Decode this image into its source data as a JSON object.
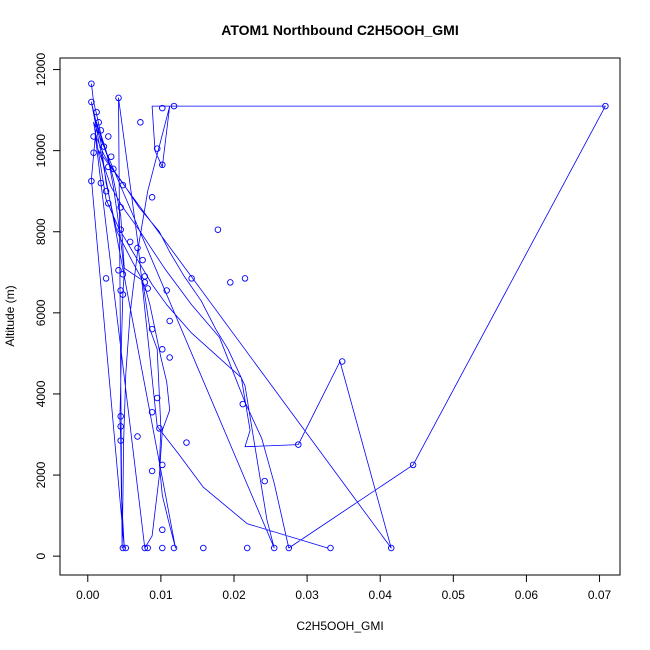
{
  "chart_data": {
    "type": "line",
    "title": "ATOM1 Northbound C2H5OOH_GMI",
    "xlabel": "C2H5OOH_GMI",
    "ylabel": "Altitude (m)",
    "xlim": [
      -0.0038,
      0.0728
    ],
    "ylim": [
      -465,
      12285
    ],
    "xticks": [
      0.0,
      0.01,
      0.02,
      0.03,
      0.04,
      0.05,
      0.06,
      0.07
    ],
    "xtick_labels": [
      "0.00",
      "0.01",
      "0.02",
      "0.03",
      "0.04",
      "0.05",
      "0.06",
      "0.07"
    ],
    "yticks": [
      0,
      2000,
      4000,
      6000,
      8000,
      10000,
      12000
    ],
    "ytick_labels": [
      "0",
      "2000",
      "4000",
      "6000",
      "8000",
      "10000",
      "12000"
    ],
    "grid": false,
    "legend": "none",
    "series_color": "#0000ff",
    "series": [
      {
        "x": [
          0.0005,
          0.0008,
          0.0012,
          0.0018,
          0.0025,
          0.003,
          0.0035,
          0.004,
          0.0045,
          0.005,
          0.0048,
          0.0046,
          0.0045,
          0.0044,
          0.0045,
          0.0046,
          0.005,
          0.0005,
          0.0012,
          0.0022,
          0.0028,
          0.0035,
          0.0045,
          0.005,
          0.0075,
          0.0085,
          0.0095,
          0.01,
          0.0098,
          0.0102,
          0.011,
          0.012,
          0.0005,
          0.0018,
          0.0025,
          0.004,
          0.006,
          0.0072,
          0.0079,
          0.0085,
          0.01,
          0.0108,
          0.0112,
          0.0102,
          0.0098,
          0.0088,
          0.0078,
          0.001,
          0.0022,
          0.0032,
          0.0048,
          0.007,
          0.0098,
          0.0112,
          0.0132,
          0.0155,
          0.0175,
          0.0192,
          0.0215,
          0.0245,
          0.0255,
          0.0008,
          0.0025,
          0.0042,
          0.0065,
          0.0088,
          0.0108,
          0.0142,
          0.021,
          0.0222,
          0.0215,
          0.0288,
          0.0345,
          0.0415,
          0.0015,
          0.0032,
          0.0048,
          0.0072,
          0.0105,
          0.0142,
          0.018,
          0.0215,
          0.0238,
          0.0255,
          0.0275,
          0.0445,
          0.0708,
          0.0088,
          0.0092,
          0.0102,
          0.0112,
          0.0082,
          0.0068,
          0.0058,
          0.0052,
          0.0049,
          0.0048,
          0.0047,
          0.0042,
          0.0068,
          0.0095,
          0.0125,
          0.0158,
          0.0218,
          0.0328
        ],
        "y": [
          11650,
          11200,
          10900,
          10400,
          10000,
          9600,
          9100,
          8500,
          7800,
          7000,
          6500,
          5200,
          4200,
          3400,
          2900,
          1500,
          200,
          9300,
          10700,
          10100,
          9800,
          9300,
          8400,
          7100,
          6800,
          5600,
          5100,
          3150,
          2250,
          1500,
          900,
          200,
          11200,
          10200,
          9200,
          8000,
          7300,
          6900,
          6600,
          6200,
          4900,
          4300,
          3600,
          3100,
          2000,
          500,
          200,
          10400,
          9900,
          9600,
          9200,
          8600,
          8000,
          7500,
          6900,
          6300,
          5600,
          5100,
          4200,
          900,
          200,
          10700,
          8800,
          8100,
          7400,
          6700,
          6200,
          5500,
          4400,
          3100,
          2700,
          2750,
          4800,
          200,
          10000,
          9100,
          8600,
          8000,
          7100,
          6200,
          5400,
          3800,
          2900,
          1800,
          200,
          2250,
          11100,
          11100,
          10000,
          9600,
          11100,
          9000,
          7500,
          6000,
          4500,
          2800,
          1400,
          200,
          11300,
          7800,
          3200,
          2500,
          1700,
          800,
          200
        ]
      }
    ],
    "markers": [
      {
        "x": 0.0005,
        "y": 11650
      },
      {
        "x": 0.0005,
        "y": 11200
      },
      {
        "x": 0.0042,
        "y": 11300
      },
      {
        "x": 0.0102,
        "y": 11050
      },
      {
        "x": 0.0118,
        "y": 11100
      },
      {
        "x": 0.0012,
        "y": 10950
      },
      {
        "x": 0.0015,
        "y": 10700
      },
      {
        "x": 0.0072,
        "y": 10700
      },
      {
        "x": 0.0018,
        "y": 10500
      },
      {
        "x": 0.0008,
        "y": 10350
      },
      {
        "x": 0.0028,
        "y": 10350
      },
      {
        "x": 0.0022,
        "y": 10100
      },
      {
        "x": 0.0095,
        "y": 10050
      },
      {
        "x": 0.0008,
        "y": 9950
      },
      {
        "x": 0.0032,
        "y": 9850
      },
      {
        "x": 0.0102,
        "y": 9650
      },
      {
        "x": 0.0028,
        "y": 9600
      },
      {
        "x": 0.0035,
        "y": 9550
      },
      {
        "x": 0.0005,
        "y": 9250
      },
      {
        "x": 0.0018,
        "y": 9200
      },
      {
        "x": 0.0048,
        "y": 9150
      },
      {
        "x": 0.0025,
        "y": 9000
      },
      {
        "x": 0.0088,
        "y": 8850
      },
      {
        "x": 0.0028,
        "y": 8700
      },
      {
        "x": 0.0045,
        "y": 8600
      },
      {
        "x": 0.0178,
        "y": 8050
      },
      {
        "x": 0.0045,
        "y": 8050
      },
      {
        "x": 0.0058,
        "y": 7750
      },
      {
        "x": 0.0068,
        "y": 7600
      },
      {
        "x": 0.0075,
        "y": 7300
      },
      {
        "x": 0.0042,
        "y": 7050
      },
      {
        "x": 0.0048,
        "y": 6950
      },
      {
        "x": 0.0078,
        "y": 6900
      },
      {
        "x": 0.0025,
        "y": 6850
      },
      {
        "x": 0.0142,
        "y": 6850
      },
      {
        "x": 0.0215,
        "y": 6850
      },
      {
        "x": 0.0078,
        "y": 6750
      },
      {
        "x": 0.0195,
        "y": 6750
      },
      {
        "x": 0.0082,
        "y": 6600
      },
      {
        "x": 0.0108,
        "y": 6550
      },
      {
        "x": 0.0045,
        "y": 6550
      },
      {
        "x": 0.0048,
        "y": 6450
      },
      {
        "x": 0.0112,
        "y": 5800
      },
      {
        "x": 0.0088,
        "y": 5600
      },
      {
        "x": 0.0102,
        "y": 5100
      },
      {
        "x": 0.0112,
        "y": 4900
      },
      {
        "x": 0.0348,
        "y": 4800
      },
      {
        "x": 0.0095,
        "y": 3900
      },
      {
        "x": 0.0212,
        "y": 3750
      },
      {
        "x": 0.0088,
        "y": 3550
      },
      {
        "x": 0.0045,
        "y": 3450
      },
      {
        "x": 0.0045,
        "y": 3200
      },
      {
        "x": 0.0098,
        "y": 3150
      },
      {
        "x": 0.0068,
        "y": 2950
      },
      {
        "x": 0.0045,
        "y": 2850
      },
      {
        "x": 0.0135,
        "y": 2800
      },
      {
        "x": 0.0288,
        "y": 2750
      },
      {
        "x": 0.0102,
        "y": 2250
      },
      {
        "x": 0.0445,
        "y": 2250
      },
      {
        "x": 0.0088,
        "y": 2100
      },
      {
        "x": 0.0242,
        "y": 1850
      },
      {
        "x": 0.0102,
        "y": 650
      },
      {
        "x": 0.0048,
        "y": 200
      },
      {
        "x": 0.0052,
        "y": 200
      },
      {
        "x": 0.0078,
        "y": 200
      },
      {
        "x": 0.0082,
        "y": 200
      },
      {
        "x": 0.0102,
        "y": 200
      },
      {
        "x": 0.0118,
        "y": 200
      },
      {
        "x": 0.0158,
        "y": 200
      },
      {
        "x": 0.0218,
        "y": 200
      },
      {
        "x": 0.0255,
        "y": 200
      },
      {
        "x": 0.0275,
        "y": 200
      },
      {
        "x": 0.0332,
        "y": 200
      },
      {
        "x": 0.0415,
        "y": 200
      },
      {
        "x": 0.0708,
        "y": 11100
      }
    ]
  }
}
